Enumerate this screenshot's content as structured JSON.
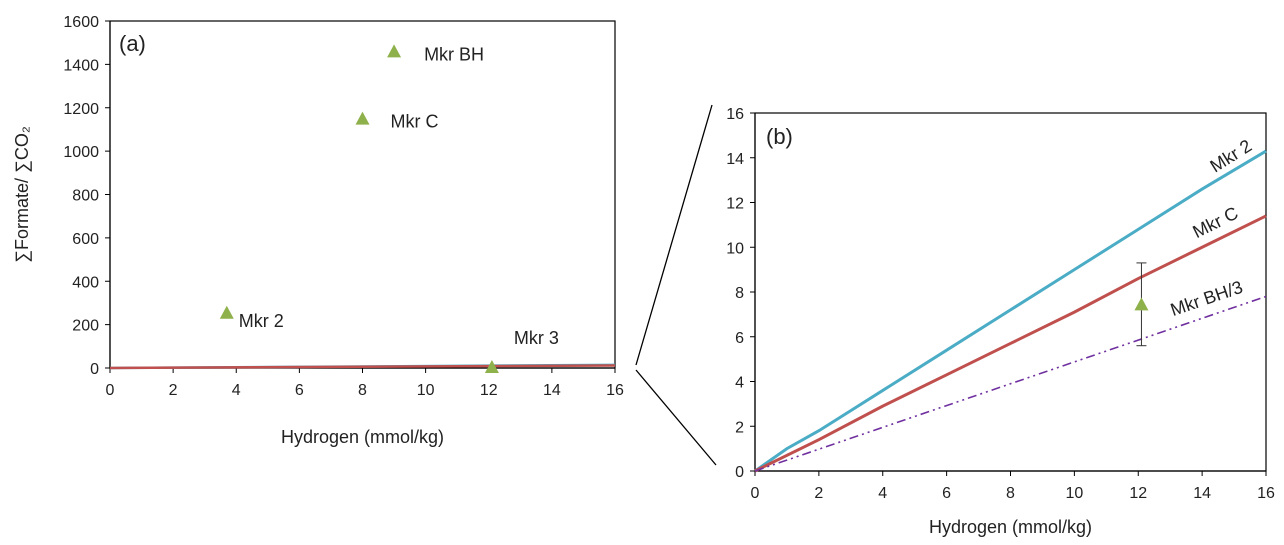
{
  "figure": {
    "zoom_connector": true
  },
  "chart_data": [
    {
      "id": "a",
      "type": "scatter",
      "panel_label": "(a)",
      "xlabel": "Hydrogen (mmol/kg)",
      "ylabel": "∑Formate/ ∑CO₂",
      "xlim": [
        0,
        16
      ],
      "ylim": [
        0,
        1600
      ],
      "xticks": [
        0,
        2,
        4,
        6,
        8,
        10,
        12,
        14,
        16
      ],
      "yticks": [
        0,
        200,
        400,
        600,
        800,
        1000,
        1200,
        1400,
        1600
      ],
      "grid": false,
      "marker_color": "#8fb14c",
      "points": [
        {
          "label": "Mkr 2",
          "x": 3.7,
          "y": 250
        },
        {
          "label": "Mkr C",
          "x": 8.0,
          "y": 1145
        },
        {
          "label": "Mkr BH",
          "x": 9.0,
          "y": 1455
        },
        {
          "label": "Mkr 3",
          "x": 12.1,
          "y": 0
        }
      ],
      "curves": [
        {
          "color": "#4bacc6",
          "x": [
            0,
            16
          ],
          "y": [
            0,
            14.3
          ]
        },
        {
          "color": "#c0504d",
          "x": [
            0,
            16
          ],
          "y": [
            0,
            11.4
          ]
        }
      ]
    },
    {
      "id": "b",
      "type": "line",
      "panel_label": "(b)",
      "xlabel": "Hydrogen (mmol/kg)",
      "ylabel": "",
      "xlim": [
        0,
        16
      ],
      "ylim": [
        0,
        16
      ],
      "xticks": [
        0,
        2,
        4,
        6,
        8,
        10,
        12,
        14,
        16
      ],
      "yticks": [
        0,
        2,
        4,
        6,
        8,
        10,
        12,
        14,
        16
      ],
      "grid": false,
      "series": [
        {
          "name": "Mkr 2",
          "color": "#4bacc6",
          "style": "solid",
          "x": [
            0,
            1,
            2,
            3,
            4,
            6,
            8,
            10,
            12,
            14,
            16
          ],
          "y": [
            0,
            1.0,
            1.8,
            2.7,
            3.6,
            5.4,
            7.2,
            9.0,
            10.8,
            12.6,
            14.3
          ]
        },
        {
          "name": "Mkr C",
          "color": "#c0504d",
          "style": "solid",
          "x": [
            0,
            2,
            4,
            6,
            8,
            10,
            12,
            14,
            16
          ],
          "y": [
            0,
            1.4,
            2.9,
            4.3,
            5.7,
            7.1,
            8.6,
            10.0,
            11.4
          ]
        },
        {
          "name": "Mkr BH/3",
          "color": "#7030a0",
          "style": "dashdot",
          "x": [
            0,
            16
          ],
          "y": [
            0,
            7.8
          ]
        }
      ],
      "point": {
        "x": 12.1,
        "y": 7.4,
        "err_low": 5.6,
        "err_high": 9.3,
        "color": "#8fb14c"
      }
    }
  ]
}
